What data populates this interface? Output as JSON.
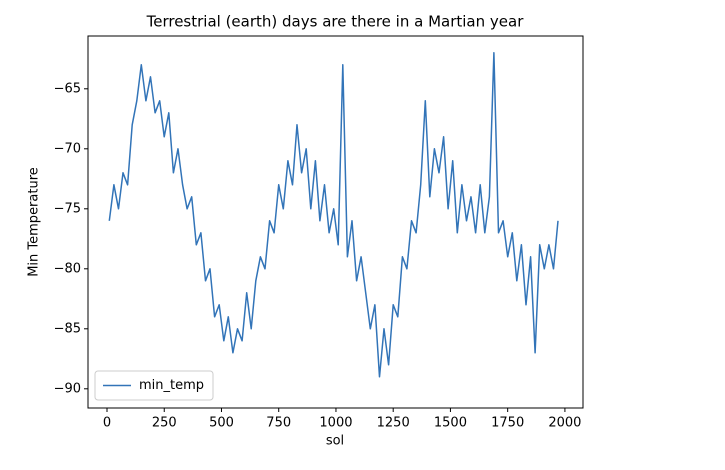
{
  "chart_data": {
    "type": "line",
    "title": "Terrestrial (earth) days are there in a Martian year",
    "xlabel": "sol",
    "ylabel": "Min Temperature",
    "x": [
      10,
      30,
      50,
      70,
      90,
      110,
      130,
      150,
      170,
      190,
      210,
      230,
      250,
      270,
      290,
      310,
      330,
      350,
      370,
      390,
      410,
      430,
      450,
      470,
      490,
      510,
      530,
      550,
      570,
      590,
      610,
      630,
      650,
      670,
      690,
      710,
      730,
      750,
      770,
      790,
      810,
      830,
      850,
      870,
      890,
      910,
      930,
      950,
      970,
      990,
      1010,
      1030,
      1050,
      1070,
      1090,
      1110,
      1130,
      1150,
      1170,
      1190,
      1210,
      1230,
      1250,
      1270,
      1290,
      1310,
      1330,
      1350,
      1370,
      1390,
      1410,
      1430,
      1450,
      1470,
      1490,
      1510,
      1530,
      1550,
      1570,
      1590,
      1610,
      1630,
      1650,
      1670,
      1690,
      1710,
      1730,
      1750,
      1770,
      1790,
      1810,
      1830,
      1850,
      1870,
      1890,
      1910,
      1930,
      1950,
      1970
    ],
    "series": [
      {
        "name": "min_temp",
        "color": "#3274b8",
        "values": [
          -76,
          -73,
          -75,
          -72,
          -73,
          -68,
          -66,
          -63,
          -66,
          -64,
          -67,
          -66,
          -69,
          -67,
          -72,
          -70,
          -73,
          -75,
          -74,
          -78,
          -77,
          -81,
          -80,
          -84,
          -83,
          -86,
          -84,
          -87,
          -85,
          -86,
          -82,
          -85,
          -81,
          -79,
          -80,
          -76,
          -77,
          -73,
          -75,
          -71,
          -73,
          -68,
          -72,
          -70,
          -75,
          -71,
          -76,
          -73,
          -77,
          -75,
          -78,
          -63,
          -79,
          -76,
          -81,
          -79,
          -82,
          -85,
          -83,
          -89,
          -85,
          -88,
          -83,
          -84,
          -79,
          -80,
          -76,
          -77,
          -73,
          -66,
          -74,
          -70,
          -72,
          -69,
          -75,
          -71,
          -77,
          -73,
          -76,
          -74,
          -77,
          -73,
          -77,
          -74,
          -62,
          -77,
          -76,
          -79,
          -77,
          -81,
          -78,
          -83,
          -79,
          -87,
          -78,
          -80,
          -78,
          -80,
          -76
        ]
      }
    ],
    "xlim": [
      -83,
      2079
    ],
    "ylim": [
      -91.6,
      -60.6
    ],
    "xticks": [
      0,
      250,
      500,
      750,
      1000,
      1250,
      1500,
      1750,
      2000
    ],
    "yticks": [
      {
        "value": -90,
        "label": "−90"
      },
      {
        "value": -85,
        "label": "−85"
      },
      {
        "value": -80,
        "label": "−80"
      },
      {
        "value": -75,
        "label": "−75"
      },
      {
        "value": -70,
        "label": "−70"
      },
      {
        "value": -65,
        "label": "−65"
      }
    ],
    "legend": "lower left"
  }
}
